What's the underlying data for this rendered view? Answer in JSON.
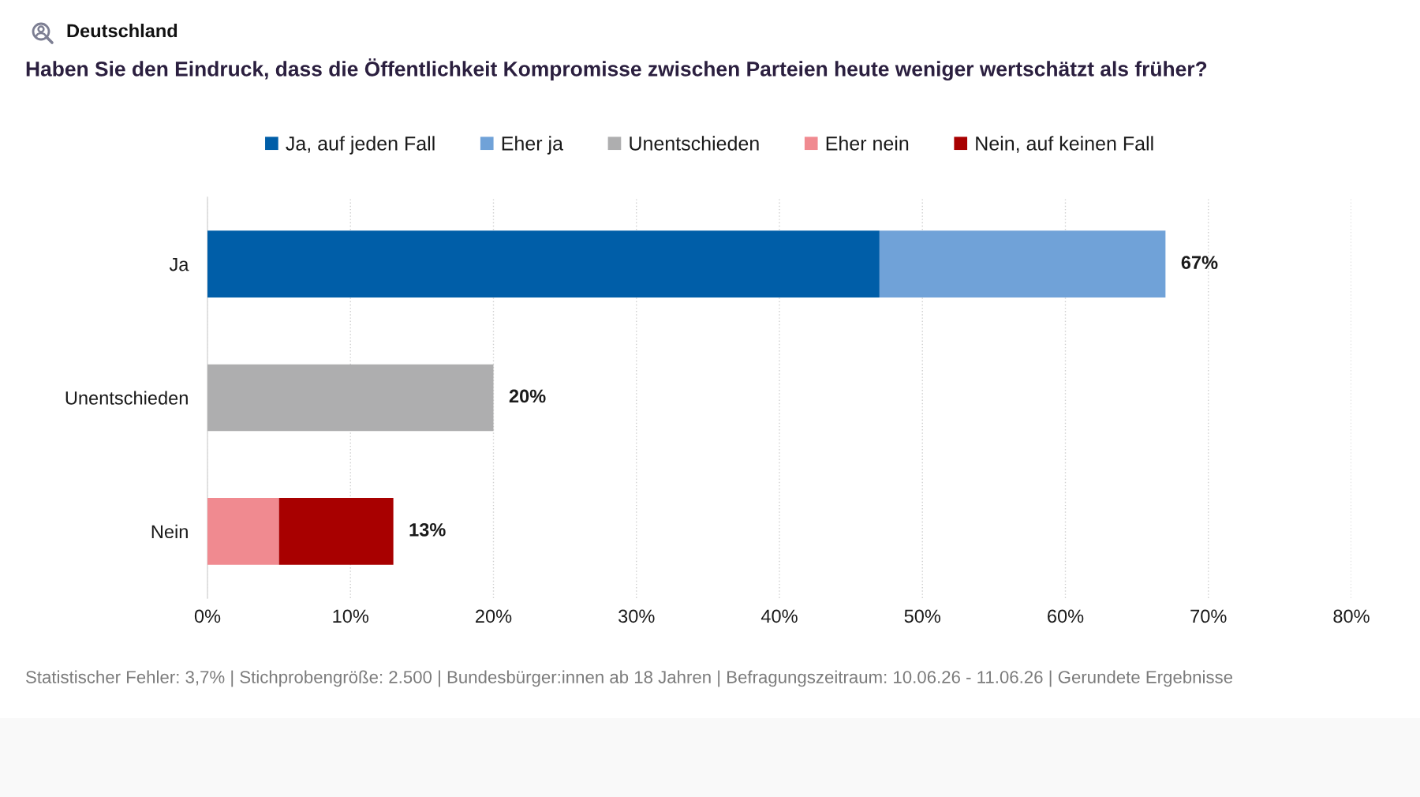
{
  "chart_data": {
    "type": "bar",
    "orientation": "horizontal",
    "stacked": true,
    "title": "Deutschland",
    "subtitle": "Haben Sie den Eindruck, dass die Öffentlichkeit Kompromisse zwischen Parteien heute weniger wertschätzt als früher?",
    "categories": [
      "Ja",
      "Unentschieden",
      "Nein"
    ],
    "series": [
      {
        "name": "Ja, auf jeden Fall",
        "color": "#005ea8",
        "values": [
          47,
          null,
          null
        ]
      },
      {
        "name": "Eher ja",
        "color": "#70a2d8",
        "values": [
          20,
          null,
          null
        ]
      },
      {
        "name": "Unentschieden",
        "color": "#aeaeaf",
        "values": [
          null,
          20,
          null
        ]
      },
      {
        "name": "Eher nein",
        "color": "#f08a90",
        "values": [
          null,
          null,
          5
        ]
      },
      {
        "name": "Nein, auf keinen Fall",
        "color": "#a80000",
        "values": [
          null,
          null,
          8
        ]
      }
    ],
    "totals": [
      "67%",
      "20%",
      "13%"
    ],
    "xlim": [
      0,
      80
    ],
    "xticks": [
      {
        "value": 0,
        "label": "0%"
      },
      {
        "value": 10,
        "label": "10%"
      },
      {
        "value": 20,
        "label": "20%"
      },
      {
        "value": 30,
        "label": "30%"
      },
      {
        "value": 40,
        "label": "40%"
      },
      {
        "value": 50,
        "label": "50%"
      },
      {
        "value": 60,
        "label": "60%"
      },
      {
        "value": 70,
        "label": "70%"
      },
      {
        "value": 80,
        "label": "80%"
      }
    ],
    "grid": "x",
    "legend": "top",
    "annotations": [
      "Statistischer Fehler: 3,7% | Stichprobengröße: 2.500 | Bundesbürger:innen ab 18 Jahren | Befragungszeitraum: 10.06.26 - 11.06.26 | Gerundete Ergebnisse"
    ]
  }
}
